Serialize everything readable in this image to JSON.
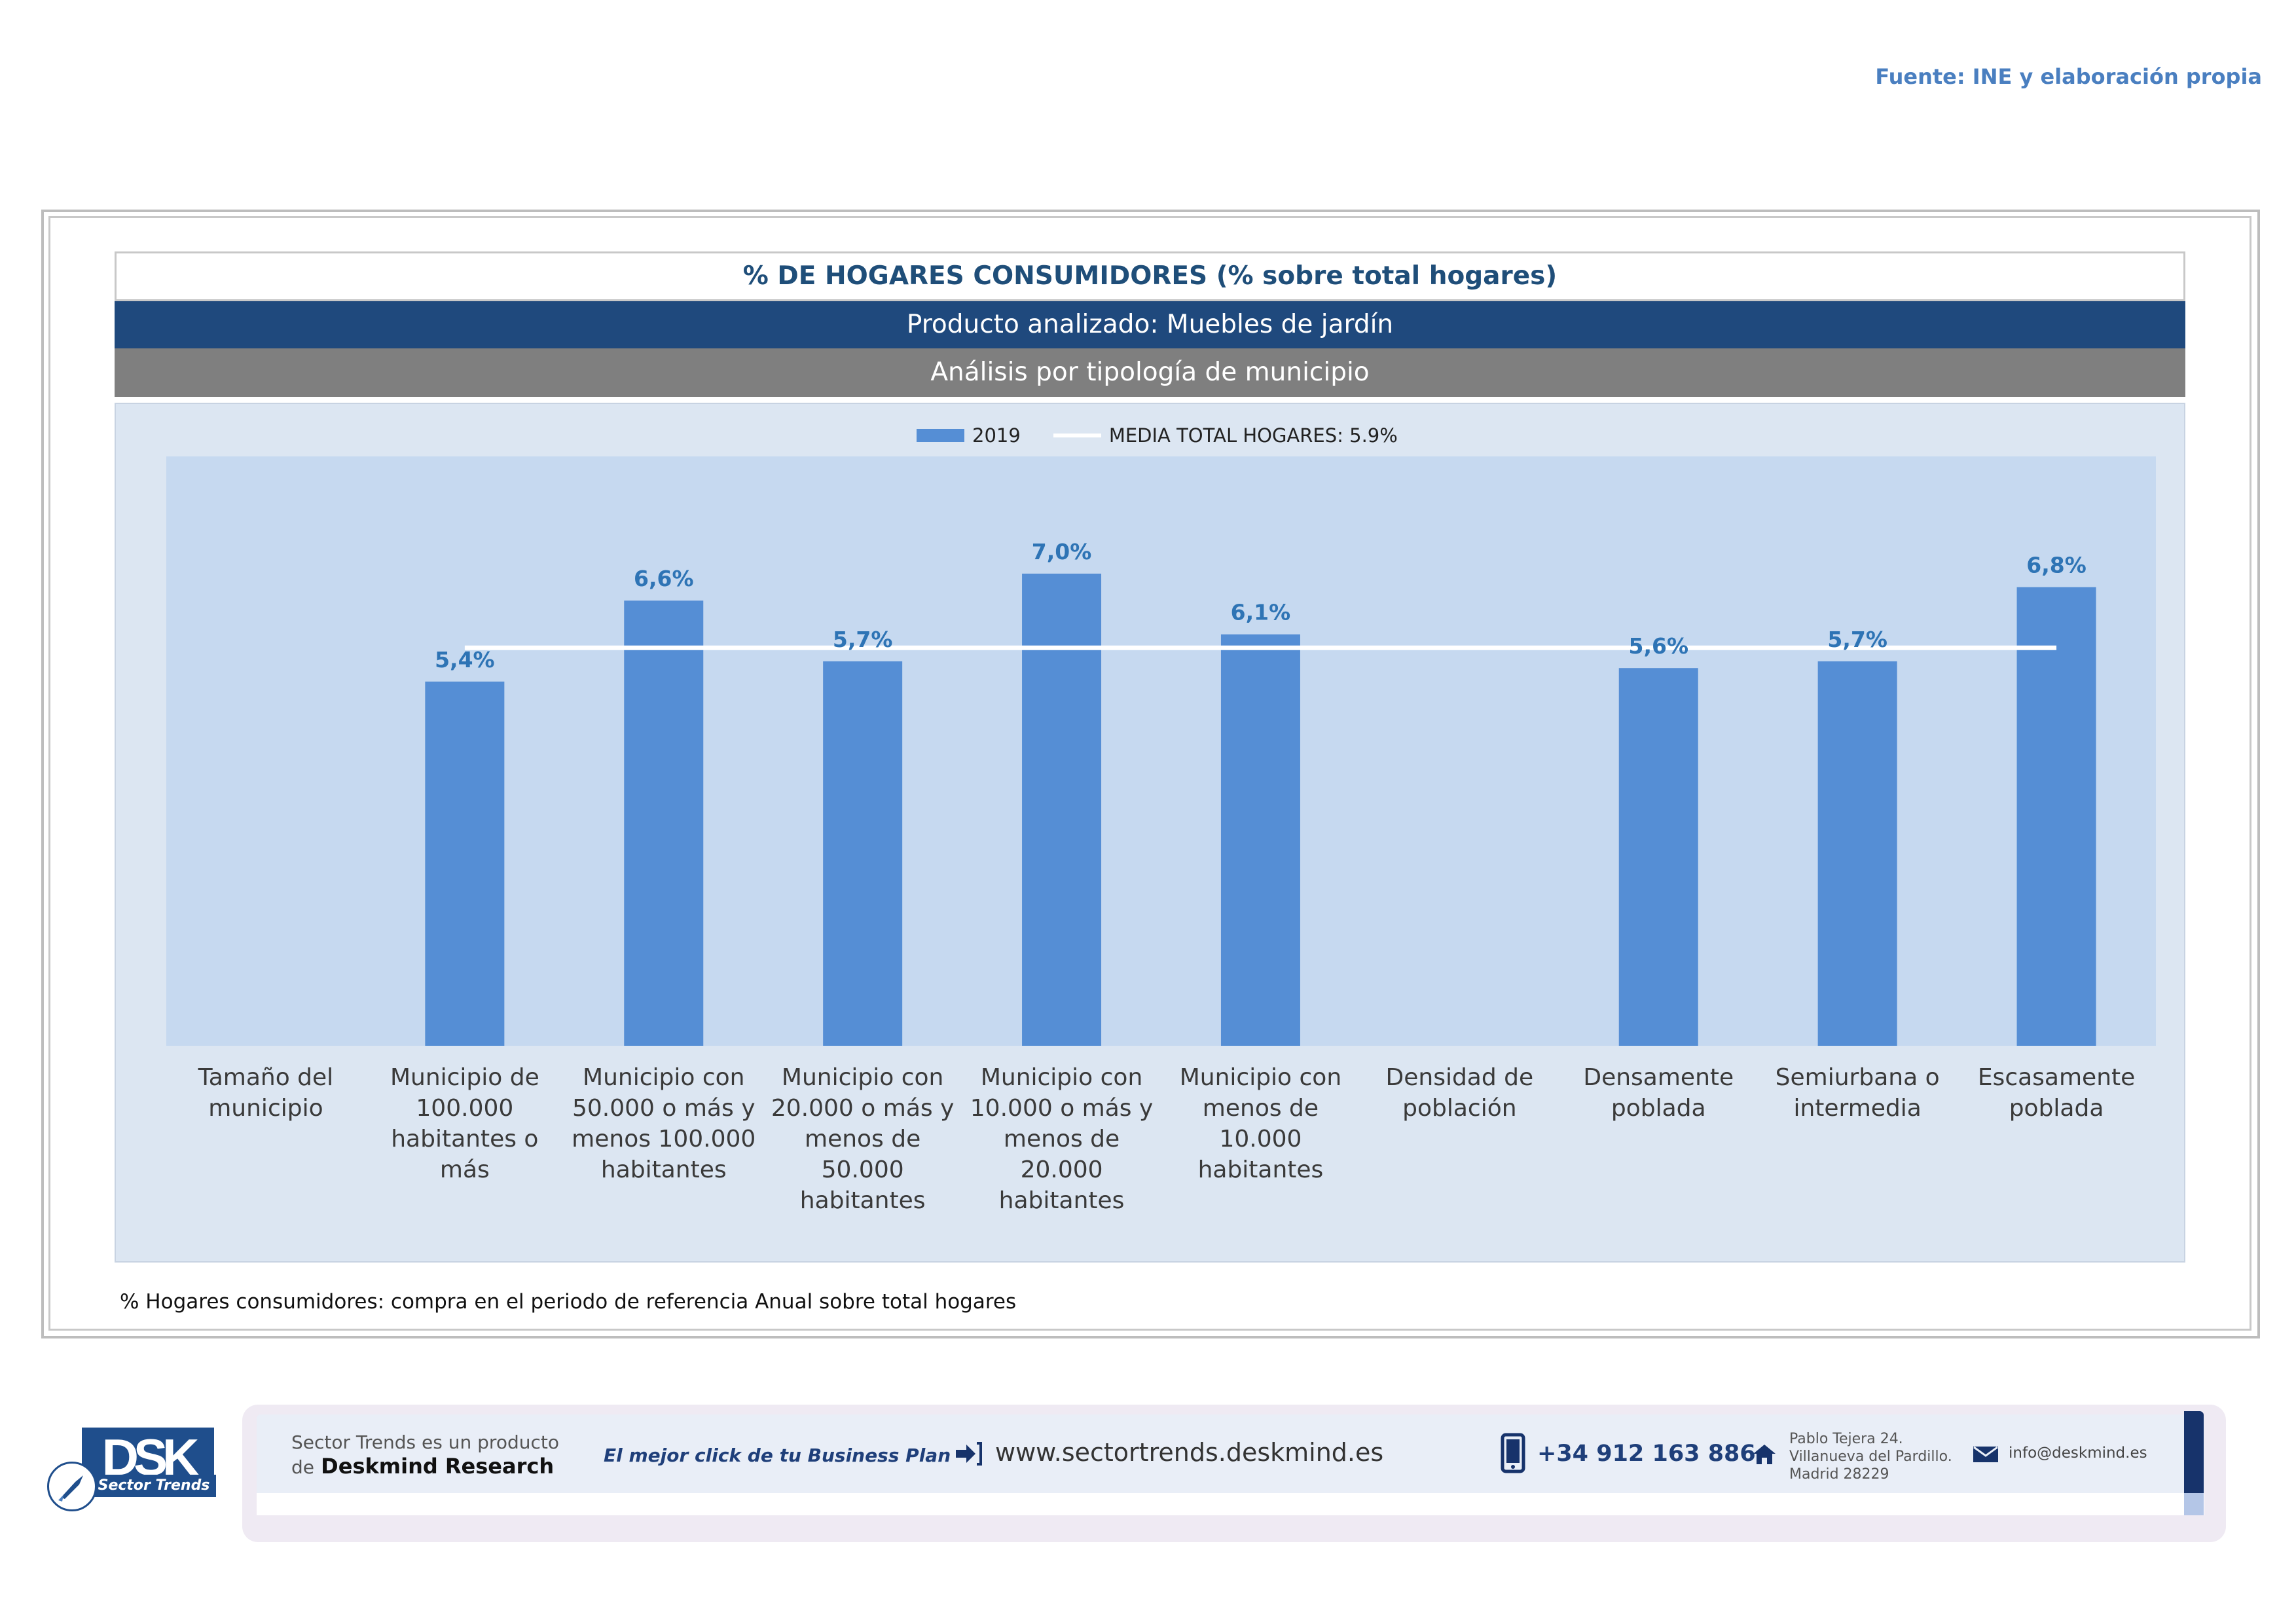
{
  "source": "Fuente: INE y elaboración propia",
  "header": {
    "title": "% DE HOGARES CONSUMIDORES (% sobre total hogares)",
    "product": "Producto analizado: Muebles de jardín",
    "analysis": "Análisis por tipología de municipio"
  },
  "legend": {
    "series_label": "2019",
    "line_label": "MEDIA TOTAL  HOGARES: 5.9%"
  },
  "colors": {
    "bar": "#558ed5",
    "label": "#2e74b5",
    "mean_line": "#ffffff"
  },
  "chart_data": {
    "type": "bar",
    "title": "% DE HOGARES CONSUMIDORES (% sobre total hogares)",
    "categories": [
      [
        "Tamaño del",
        "municipio"
      ],
      [
        "Municipio de",
        "100.000",
        "habitantes o más"
      ],
      [
        "Municipio con",
        "50.000 o más y",
        "menos 100.000",
        "habitantes"
      ],
      [
        "Municipio con",
        "20.000 o más y",
        "menos de 50.000",
        "habitantes"
      ],
      [
        "Municipio con",
        "10.000 o más y",
        "menos de 20.000",
        "habitantes"
      ],
      [
        "Municipio con",
        "menos de 10.000",
        "habitantes"
      ],
      [
        "Densidad de",
        "población"
      ],
      [
        "Densamente",
        "poblada"
      ],
      [
        "Semiurbana o",
        "intermedia"
      ],
      [
        "Escasamente",
        "poblada"
      ]
    ],
    "series": [
      {
        "name": "2019",
        "values": [
          null,
          5.4,
          6.6,
          5.7,
          7.0,
          6.1,
          null,
          5.6,
          5.7,
          6.8
        ]
      }
    ],
    "value_labels": [
      "",
      "5,4%",
      "6,6%",
      "5,7%",
      "7,0%",
      "6,1%",
      "",
      "5,6%",
      "5,7%",
      "6,8%"
    ],
    "mean_line": {
      "name": "MEDIA TOTAL  HOGARES: 5.9%",
      "value": 5.9
    },
    "ylim": [
      0,
      8
    ],
    "xlabel": "",
    "ylabel": "",
    "grid": false,
    "legend_position": "top"
  },
  "note": "% Hogares consumidores: compra en el periodo de referencia Anual sobre total hogares",
  "footer": {
    "logo_text": "DSK",
    "logo_sub": "Sector Trends",
    "brand_line1": "Sector Trends es un producto",
    "brand_line2_prefix": "de",
    "brand_line2_name": "Deskmind Research",
    "slogan": "El mejor click de tu Business Plan",
    "website": "www.sectortrends.deskmind.es",
    "phone": "+34 912 163 886",
    "address_line1": "Pablo Tejera 24.",
    "address_line2": "Villanueva del Pardillo.",
    "address_line3": "Madrid 28229",
    "email": "info@deskmind.es"
  }
}
